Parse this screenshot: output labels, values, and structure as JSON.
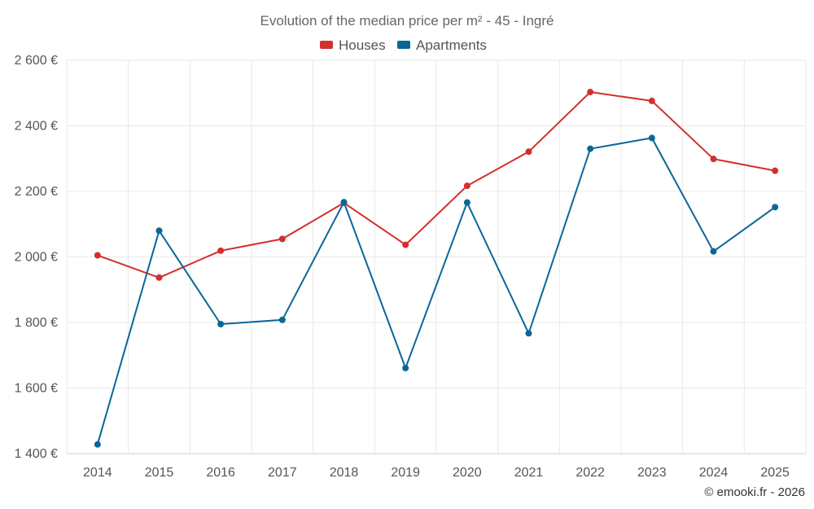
{
  "chart_data": {
    "type": "line",
    "title": "Evolution of the median price per m² - 45 - Ingré",
    "categories": [
      "2014",
      "2015",
      "2016",
      "2017",
      "2018",
      "2019",
      "2020",
      "2021",
      "2022",
      "2023",
      "2024",
      "2025"
    ],
    "series": [
      {
        "name": "Houses",
        "color": "#d32f2f",
        "values": [
          2005,
          1937,
          2019,
          2055,
          2165,
          2037,
          2217,
          2321,
          2503,
          2476,
          2299,
          2263
        ]
      },
      {
        "name": "Apartments",
        "color": "#0a6699",
        "values": [
          1428,
          2080,
          1795,
          1808,
          2167,
          1661,
          2166,
          1767,
          2330,
          2363,
          2017,
          2152
        ]
      }
    ],
    "y_ticks": [
      1400,
      1600,
      1800,
      2000,
      2200,
      2400,
      2600
    ],
    "y_tick_labels": [
      "1 400 €",
      "1 600 €",
      "1 800 €",
      "2 000 €",
      "2 200 €",
      "2 400 €",
      "2 600 €"
    ],
    "ylim": [
      1400,
      2600
    ],
    "xlabel": "",
    "ylabel": "",
    "legend_position": "top-center",
    "credit": "© emooki.fr - 2026"
  }
}
